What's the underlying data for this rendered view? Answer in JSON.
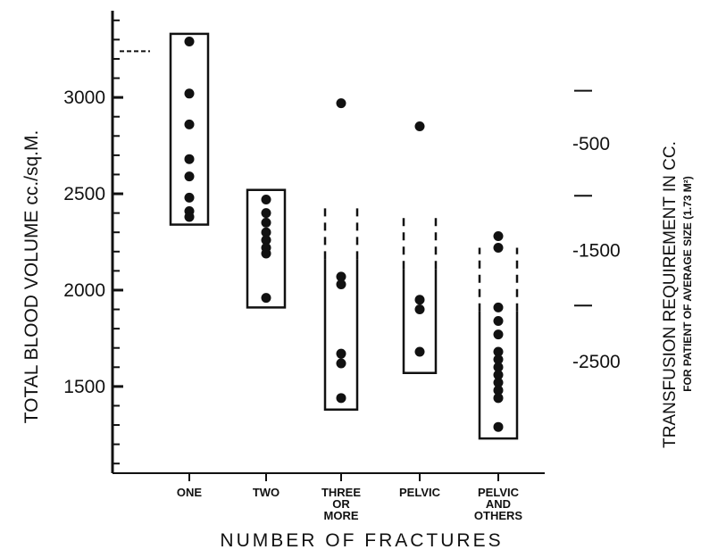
{
  "chart_data": {
    "type": "scatter",
    "xlabel": "NUMBER OF FRACTURES",
    "ylabel": "TOTAL BLOOD VOLUME cc./sq.M.",
    "y2label": "TRANSFUSION REQUIREMENT IN CC.",
    "y2sublabel": "FOR PATIENT OF AVERAGE SIZE (1.73 M²)",
    "ylim": [
      1050,
      3450
    ],
    "yticks": [
      1500,
      2000,
      2500,
      3000
    ],
    "yticks_labels": [
      "1500",
      "2000",
      "2500",
      "3000"
    ],
    "y2ticks": [
      {
        "label": "-500",
        "y": 2760
      },
      {
        "label": "-1500",
        "y": 2205
      },
      {
        "label": "-2500",
        "y": 1630
      }
    ],
    "y2_unlabeled_ticks": [
      3035,
      2490,
      1920
    ],
    "normal_reference_level": 3240,
    "categories": [
      "ONE",
      "TWO",
      "THREE OR MORE",
      "PELVIC",
      "PELVIC AND OTHERS"
    ],
    "groups": [
      {
        "category": "ONE",
        "range": [
          2340,
          3330
        ],
        "range_dashed": false,
        "points": [
          3290,
          3020,
          2860,
          2680,
          2590,
          2480,
          2410,
          2380
        ]
      },
      {
        "category": "TWO",
        "range": [
          1910,
          2520
        ],
        "range_dashed": false,
        "points": [
          2470,
          2400,
          2350,
          2300,
          2260,
          2220,
          2190,
          1960
        ]
      },
      {
        "category": "THREE OR MORE",
        "range": [
          1380,
          2160
        ],
        "range_dashed": true,
        "range_dashed_top": 2430,
        "points": [
          2970,
          2070,
          2030,
          1670,
          1620,
          1440
        ]
      },
      {
        "category": "PELVIC",
        "range": [
          1570,
          2110
        ],
        "range_dashed": true,
        "range_dashed_top": 2380,
        "points": [
          2850,
          1950,
          1900,
          1680
        ]
      },
      {
        "category": "PELVIC AND OTHERS",
        "range": [
          1230,
          1890
        ],
        "range_dashed": true,
        "range_dashed_top": 2220,
        "points": [
          2280,
          2220,
          1910,
          1840,
          1770,
          1680,
          1640,
          1600,
          1560,
          1520,
          1480,
          1440,
          1290
        ]
      }
    ]
  }
}
